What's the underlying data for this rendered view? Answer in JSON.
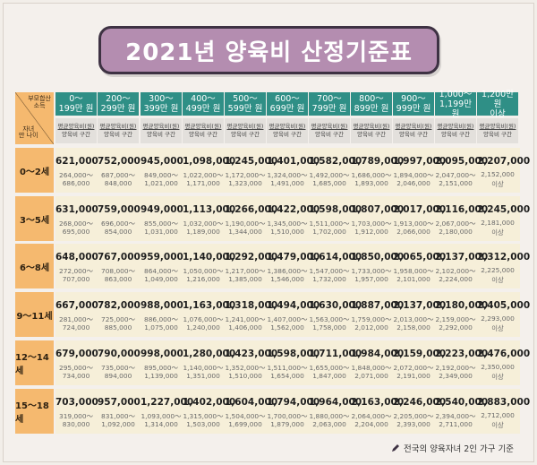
{
  "title": "2021년 양육비 산정기준표",
  "corner": {
    "top_right_1": "부모합산",
    "top_right_2": "소득",
    "bottom_left_1": "자녀",
    "bottom_left_2": "만 나이"
  },
  "columns": [
    {
      "line1": "0～",
      "line2": "199만 원"
    },
    {
      "line1": "200～",
      "line2": "299만 원"
    },
    {
      "line1": "300～",
      "line2": "399만 원"
    },
    {
      "line1": "400～",
      "line2": "499만 원"
    },
    {
      "line1": "500～",
      "line2": "599만 원"
    },
    {
      "line1": "600～",
      "line2": "699만 원"
    },
    {
      "line1": "700～",
      "line2": "799만 원"
    },
    {
      "line1": "800～",
      "line2": "899만 원"
    },
    {
      "line1": "900～",
      "line2": "999만 원"
    },
    {
      "line1": "1,000～",
      "line2": "1,199만 원"
    },
    {
      "line1": "1,200만 원",
      "line2": "이상"
    }
  ],
  "subheader": {
    "line1": "평균양육비(원)",
    "line2": "양육비 구간"
  },
  "rows": [
    {
      "age": "0～2세",
      "cells": [
        {
          "avg": "621,000",
          "lo": "264,000～",
          "hi": "686,000"
        },
        {
          "avg": "752,000",
          "lo": "687,000～",
          "hi": "848,000"
        },
        {
          "avg": "945,000",
          "lo": "849,000～",
          "hi": "1,021,000"
        },
        {
          "avg": "1,098,000",
          "lo": "1,022,000～",
          "hi": "1,171,000"
        },
        {
          "avg": "1,245,000",
          "lo": "1,172,000～",
          "hi": "1,323,000"
        },
        {
          "avg": "1,401,000",
          "lo": "1,324,000～",
          "hi": "1,491,000"
        },
        {
          "avg": "1,582,000",
          "lo": "1,492,000～",
          "hi": "1,685,000"
        },
        {
          "avg": "1,789,000",
          "lo": "1,686,000～",
          "hi": "1,893,000"
        },
        {
          "avg": "1,997,000",
          "lo": "1,894,000～",
          "hi": "2,046,000"
        },
        {
          "avg": "2,095,000",
          "lo": "2,047,000～",
          "hi": "2,151,000"
        },
        {
          "avg": "2,207,000",
          "lo": "2,152,000",
          "hi": "이상"
        }
      ]
    },
    {
      "age": "3～5세",
      "cells": [
        {
          "avg": "631,000",
          "lo": "268,000～",
          "hi": "695,000"
        },
        {
          "avg": "759,000",
          "lo": "696,000～",
          "hi": "854,000"
        },
        {
          "avg": "949,000",
          "lo": "855,000～",
          "hi": "1,031,000"
        },
        {
          "avg": "1,113,000",
          "lo": "1,032,000～",
          "hi": "1,189,000"
        },
        {
          "avg": "1,266,000",
          "lo": "1,190,000～",
          "hi": "1,344,000"
        },
        {
          "avg": "1,422,000",
          "lo": "1,345,000～",
          "hi": "1,510,000"
        },
        {
          "avg": "1,598,000",
          "lo": "1,511,000～",
          "hi": "1,702,000"
        },
        {
          "avg": "1,807,000",
          "lo": "1,703,000～",
          "hi": "1,912,000"
        },
        {
          "avg": "2,017,000",
          "lo": "1,913,000～",
          "hi": "2,066,000"
        },
        {
          "avg": "2,116,000",
          "lo": "2,067,000～",
          "hi": "2,180,000"
        },
        {
          "avg": "2,245,000",
          "lo": "2,181,000",
          "hi": "이상"
        }
      ]
    },
    {
      "age": "6～8세",
      "cells": [
        {
          "avg": "648,000",
          "lo": "272,000～",
          "hi": "707,000"
        },
        {
          "avg": "767,000",
          "lo": "708,000～",
          "hi": "863,000"
        },
        {
          "avg": "959,000",
          "lo": "864,000～",
          "hi": "1,049,000"
        },
        {
          "avg": "1,140,000",
          "lo": "1,050,000～",
          "hi": "1,216,000"
        },
        {
          "avg": "1,292,000",
          "lo": "1,217,000～",
          "hi": "1,385,000"
        },
        {
          "avg": "1,479,000",
          "lo": "1,386,000～",
          "hi": "1,546,000"
        },
        {
          "avg": "1,614,000",
          "lo": "1,547,000～",
          "hi": "1,732,000"
        },
        {
          "avg": "1,850,000",
          "lo": "1,733,000～",
          "hi": "1,957,000"
        },
        {
          "avg": "2,065,000",
          "lo": "1,958,000～",
          "hi": "2,101,000"
        },
        {
          "avg": "2,137,000",
          "lo": "2,102,000～",
          "hi": "2,224,000"
        },
        {
          "avg": "2,312,000",
          "lo": "2,225,000",
          "hi": "이상"
        }
      ]
    },
    {
      "age": "9～11세",
      "cells": [
        {
          "avg": "667,000",
          "lo": "281,000～",
          "hi": "724,000"
        },
        {
          "avg": "782,000",
          "lo": "725,000～",
          "hi": "885,000"
        },
        {
          "avg": "988,000",
          "lo": "886,000～",
          "hi": "1,075,000"
        },
        {
          "avg": "1,163,000",
          "lo": "1,076,000～",
          "hi": "1,240,000"
        },
        {
          "avg": "1,318,000",
          "lo": "1,241,000～",
          "hi": "1,406,000"
        },
        {
          "avg": "1,494,000",
          "lo": "1,407,000～",
          "hi": "1,562,000"
        },
        {
          "avg": "1,630,000",
          "lo": "1,563,000～",
          "hi": "1,758,000"
        },
        {
          "avg": "1,887,000",
          "lo": "1,759,000～",
          "hi": "2,012,000"
        },
        {
          "avg": "2,137,000",
          "lo": "2,013,000～",
          "hi": "2,158,000"
        },
        {
          "avg": "2,180,000",
          "lo": "2,159,000～",
          "hi": "2,292,000"
        },
        {
          "avg": "2,405,000",
          "lo": "2,293,000",
          "hi": "이상"
        }
      ]
    },
    {
      "age": "12～14세",
      "cells": [
        {
          "avg": "679,000",
          "lo": "295,000～",
          "hi": "734,000"
        },
        {
          "avg": "790,000",
          "lo": "735,000～",
          "hi": "894,000"
        },
        {
          "avg": "998,000",
          "lo": "895,000～",
          "hi": "1,139,000"
        },
        {
          "avg": "1,280,000",
          "lo": "1,140,000～",
          "hi": "1,351,000"
        },
        {
          "avg": "1,423,000",
          "lo": "1,352,000～",
          "hi": "1,510,000"
        },
        {
          "avg": "1,598,000",
          "lo": "1,511,000～",
          "hi": "1,654,000"
        },
        {
          "avg": "1,711,000",
          "lo": "1,655,000～",
          "hi": "1,847,000"
        },
        {
          "avg": "1,984,000",
          "lo": "1,848,000～",
          "hi": "2,071,000"
        },
        {
          "avg": "2,159,000",
          "lo": "2,072,000～",
          "hi": "2,191,000"
        },
        {
          "avg": "2,223,000",
          "lo": "2,192,000～",
          "hi": "2,349,000"
        },
        {
          "avg": "2,476,000",
          "lo": "2,350,000",
          "hi": "이상"
        }
      ]
    },
    {
      "age": "15～18세",
      "cells": [
        {
          "avg": "703,000",
          "lo": "319,000～",
          "hi": "830,000"
        },
        {
          "avg": "957,000",
          "lo": "831,000～",
          "hi": "1,092,000"
        },
        {
          "avg": "1,227,000",
          "lo": "1,093,000～",
          "hi": "1,314,000"
        },
        {
          "avg": "1,402,000",
          "lo": "1,315,000～",
          "hi": "1,503,000"
        },
        {
          "avg": "1,604,000",
          "lo": "1,504,000～",
          "hi": "1,699,000"
        },
        {
          "avg": "1,794,000",
          "lo": "1,700,000～",
          "hi": "1,879,000"
        },
        {
          "avg": "1,964,000",
          "lo": "1,880,000～",
          "hi": "2,063,000"
        },
        {
          "avg": "2,163,000",
          "lo": "2,064,000～",
          "hi": "2,204,000"
        },
        {
          "avg": "2,246,000",
          "lo": "2,205,000～",
          "hi": "2,393,000"
        },
        {
          "avg": "2,540,000",
          "lo": "2,394,000～",
          "hi": "2,711,000"
        },
        {
          "avg": "2,883,000",
          "lo": "2,712,000",
          "hi": "이상"
        }
      ]
    }
  ],
  "footnote": "전국의 양육자녀 2인 가구 기준"
}
